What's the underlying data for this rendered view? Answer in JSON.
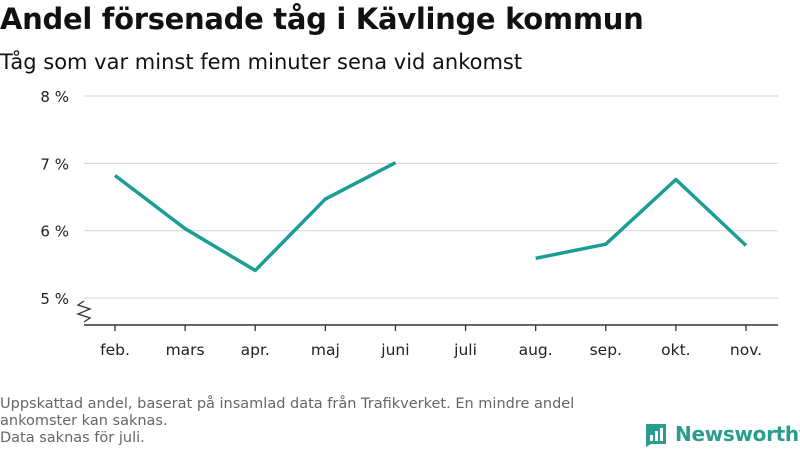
{
  "title": "Andel försenade tåg i Kävlinge kommun",
  "subtitle": "Tåg som var minst fem minuter sena vid ankomst",
  "footnote": {
    "line1": "Uppskattad andel, baserat på insamlad data från Trafikverket. En mindre andel",
    "line2": "ankomster kan saknas.",
    "line3": "Data saknas för juli."
  },
  "logo": {
    "text": "Newsworthy",
    "icon": "newsworthy-logo-icon"
  },
  "colors": {
    "line": "#1a9e94",
    "grid": "#d9d9d9",
    "axis": "#333333",
    "tick_label": "#222222"
  },
  "chart_data": {
    "type": "line",
    "title": "Andel försenade tåg i Kävlinge kommun",
    "subtitle": "Tåg som var minst fem minuter sena vid ankomst",
    "categories": [
      "feb.",
      "mars",
      "apr.",
      "maj",
      "juni",
      "juli",
      "aug.",
      "sep.",
      "okt.",
      "nov."
    ],
    "series": [
      {
        "values": [
          6.82,
          6.03,
          5.41,
          6.47,
          7.01,
          null,
          5.59,
          5.8,
          6.76,
          5.78
        ]
      }
    ],
    "y_ticks": [
      5,
      6,
      7,
      8
    ],
    "y_tick_labels": [
      "5 %",
      "6 %",
      "7 %",
      "8 %"
    ],
    "ylim": [
      4.6,
      8
    ],
    "y_axis_break": true,
    "grid": true,
    "xlabel": "",
    "ylabel": ""
  }
}
